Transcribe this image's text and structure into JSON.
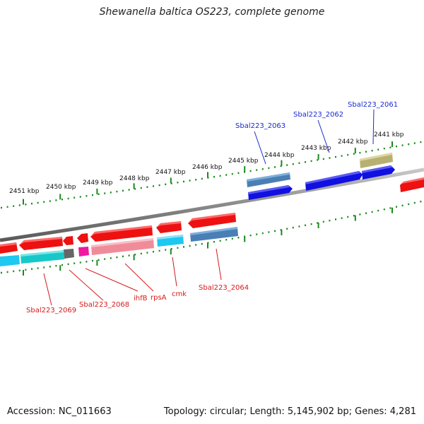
{
  "title": "Shewanella baltica OS223, complete genome",
  "footer": {
    "accession": "Accession: NC_011663",
    "topology": "Topology: circular; Length: 5,145,902 bp; Genes: 4,281"
  },
  "ruler": {
    "unit": "kbp",
    "labels": [
      {
        "kbp": 2451,
        "text": "2451 kbp"
      },
      {
        "kbp": 2450,
        "text": "2450 kbp"
      },
      {
        "kbp": 2449,
        "text": "2449 kbp"
      },
      {
        "kbp": 2448,
        "text": "2448 kbp"
      },
      {
        "kbp": 2447,
        "text": "2447 kbp"
      },
      {
        "kbp": 2446,
        "text": "2446 kbp"
      },
      {
        "kbp": 2445,
        "text": "2445 kbp"
      },
      {
        "kbp": 2444,
        "text": "2444 kbp"
      },
      {
        "kbp": 2443,
        "text": "2443 kbp"
      },
      {
        "kbp": 2442,
        "text": "2442 kbp"
      },
      {
        "kbp": 2441,
        "text": "2441 kbp"
      }
    ]
  },
  "gene_labels_outer": [
    {
      "name": "Sbal223_2063"
    },
    {
      "name": "Sbal223_2062"
    },
    {
      "name": "Sbal223_2061"
    }
  ],
  "gene_labels_inner": [
    {
      "name": "Sbal223_2069"
    },
    {
      "name": "Sbal223_2068"
    },
    {
      "name": "ihfB"
    },
    {
      "name": "rpsA"
    },
    {
      "name": "cmk"
    },
    {
      "name": "Sbal223_2064"
    }
  ],
  "colors": {
    "forward_cds": "#1010e0",
    "reverse_cds": "#ee1111",
    "cog_steel": "#4a7fb5",
    "cog_khaki": "#b8b070",
    "cog_cyan": "#1ec8f0",
    "cog_teal": "#18c8c8",
    "cog_pink": "#f08c9a",
    "cog_magenta": "#f018a0",
    "cog_gray": "#666666",
    "backbone": "#888888",
    "ruler": "#1a8a1a",
    "label_forward": "#1a2ad0",
    "label_reverse": "#d51a1a"
  }
}
